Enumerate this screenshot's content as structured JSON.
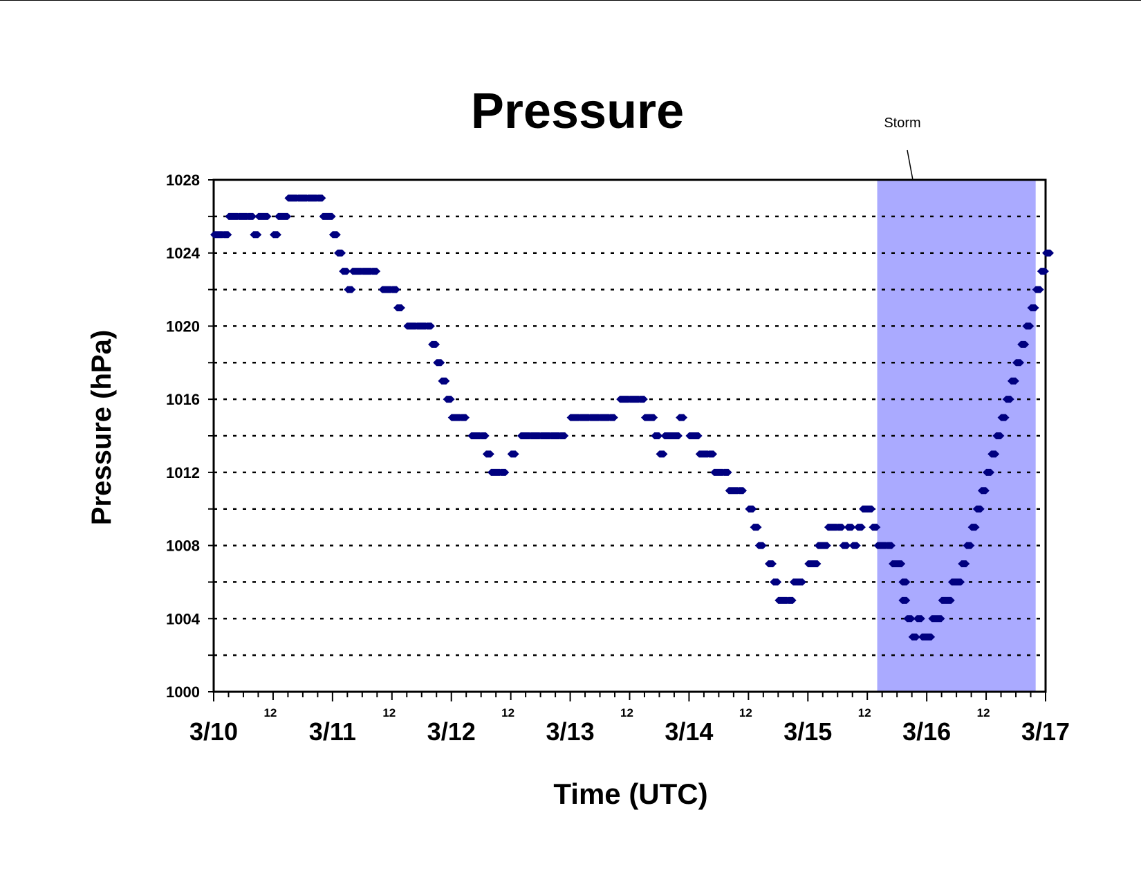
{
  "chart_data": {
    "type": "scatter",
    "title": "Pressure",
    "xlabel": "Time (UTC)",
    "ylabel": "Pressure (hPa)",
    "ylim": [
      1000,
      1028
    ],
    "yticks": [
      1000,
      1004,
      1008,
      1012,
      1016,
      1020,
      1024,
      1028
    ],
    "y_minor_ticks": [
      1002,
      1006,
      1010,
      1014,
      1018,
      1022,
      1026
    ],
    "grid": "horizontal dotted at every 2 hPa",
    "xlim": [
      "3/10 00",
      "3/17 00"
    ],
    "x_major_labels": [
      "3/10",
      "3/11",
      "3/12",
      "3/13",
      "3/14",
      "3/15",
      "3/16",
      "3/17"
    ],
    "x_minor_label": "12",
    "marker_color": "#00007f",
    "annotation": {
      "text": "Storm",
      "band_start": "3/15 14",
      "band_end": "3/16 22",
      "band_color": "#aaaaff"
    },
    "series": [
      {
        "points": [
          [
            "3/10 00",
            1025
          ],
          [
            "3/10 02",
            1025
          ],
          [
            "3/10 03",
            1026
          ],
          [
            "3/10 05",
            1026
          ],
          [
            "3/10 07",
            1026
          ],
          [
            "3/10 08",
            1025
          ],
          [
            "3/10 09",
            1026
          ],
          [
            "3/10 10",
            1026
          ],
          [
            "3/10 12",
            1025
          ],
          [
            "3/10 13",
            1026
          ],
          [
            "3/10 14",
            1026
          ],
          [
            "3/10 15",
            1027
          ],
          [
            "3/10 17",
            1027
          ],
          [
            "3/10 19",
            1027
          ],
          [
            "3/10 21",
            1027
          ],
          [
            "3/10 22",
            1026
          ],
          [
            "3/10 23",
            1026
          ],
          [
            "3/11 00",
            1025
          ],
          [
            "3/11 01",
            1024
          ],
          [
            "3/11 02",
            1023
          ],
          [
            "3/11 03",
            1022
          ],
          [
            "3/11 04",
            1023
          ],
          [
            "3/11 06",
            1023
          ],
          [
            "3/11 08",
            1023
          ],
          [
            "3/11 10",
            1022
          ],
          [
            "3/11 12",
            1022
          ],
          [
            "3/11 13",
            1021
          ],
          [
            "3/11 15",
            1020
          ],
          [
            "3/11 17",
            1020
          ],
          [
            "3/11 19",
            1020
          ],
          [
            "3/11 20",
            1019
          ],
          [
            "3/11 21",
            1018
          ],
          [
            "3/11 22",
            1017
          ],
          [
            "3/11 23",
            1016
          ],
          [
            "3/12 00",
            1015
          ],
          [
            "3/12 02",
            1015
          ],
          [
            "3/12 04",
            1014
          ],
          [
            "3/12 06",
            1014
          ],
          [
            "3/12 07",
            1013
          ],
          [
            "3/12 08",
            1012
          ],
          [
            "3/12 10",
            1012
          ],
          [
            "3/12 12",
            1013
          ],
          [
            "3/12 14",
            1014
          ],
          [
            "3/12 16",
            1014
          ],
          [
            "3/12 18",
            1014
          ],
          [
            "3/12 20",
            1014
          ],
          [
            "3/12 22",
            1014
          ],
          [
            "3/13 00",
            1015
          ],
          [
            "3/13 02",
            1015
          ],
          [
            "3/13 04",
            1015
          ],
          [
            "3/13 06",
            1015
          ],
          [
            "3/13 08",
            1015
          ],
          [
            "3/13 10",
            1016
          ],
          [
            "3/13 12",
            1016
          ],
          [
            "3/13 14",
            1016
          ],
          [
            "3/13 15",
            1015
          ],
          [
            "3/13 16",
            1015
          ],
          [
            "3/13 17",
            1014
          ],
          [
            "3/13 18",
            1013
          ],
          [
            "3/13 19",
            1014
          ],
          [
            "3/13 20",
            1014
          ],
          [
            "3/13 21",
            1014
          ],
          [
            "3/13 22",
            1015
          ],
          [
            "3/14 00",
            1014
          ],
          [
            "3/14 01",
            1014
          ],
          [
            "3/14 02",
            1013
          ],
          [
            "3/14 04",
            1013
          ],
          [
            "3/14 05",
            1012
          ],
          [
            "3/14 07",
            1012
          ],
          [
            "3/14 08",
            1011
          ],
          [
            "3/14 10",
            1011
          ],
          [
            "3/14 12",
            1010
          ],
          [
            "3/14 13",
            1009
          ],
          [
            "3/14 14",
            1008
          ],
          [
            "3/14 16",
            1007
          ],
          [
            "3/14 17",
            1006
          ],
          [
            "3/14 18",
            1005
          ],
          [
            "3/14 20",
            1005
          ],
          [
            "3/14 21",
            1006
          ],
          [
            "3/14 22",
            1006
          ],
          [
            "3/15 00",
            1007
          ],
          [
            "3/15 01",
            1007
          ],
          [
            "3/15 02",
            1008
          ],
          [
            "3/15 03",
            1008
          ],
          [
            "3/15 04",
            1009
          ],
          [
            "3/15 06",
            1009
          ],
          [
            "3/15 07",
            1008
          ],
          [
            "3/15 08",
            1009
          ],
          [
            "3/15 09",
            1008
          ],
          [
            "3/15 10",
            1009
          ],
          [
            "3/15 11",
            1010
          ],
          [
            "3/15 12",
            1010
          ],
          [
            "3/15 13",
            1009
          ],
          [
            "3/15 14",
            1008
          ],
          [
            "3/15 16",
            1008
          ],
          [
            "3/15 17",
            1007
          ],
          [
            "3/15 18",
            1007
          ],
          [
            "3/15 19",
            1006
          ],
          [
            "3/15 19",
            1005
          ],
          [
            "3/15 20",
            1004
          ],
          [
            "3/15 21",
            1003
          ],
          [
            "3/15 22",
            1004
          ],
          [
            "3/15 23",
            1003
          ],
          [
            "3/16 00",
            1003
          ],
          [
            "3/16 01",
            1004
          ],
          [
            "3/16 02",
            1004
          ],
          [
            "3/16 03",
            1005
          ],
          [
            "3/16 04",
            1005
          ],
          [
            "3/16 05",
            1006
          ],
          [
            "3/16 06",
            1006
          ],
          [
            "3/16 07",
            1007
          ],
          [
            "3/16 08",
            1008
          ],
          [
            "3/16 09",
            1009
          ],
          [
            "3/16 10",
            1010
          ],
          [
            "3/16 11",
            1011
          ],
          [
            "3/16 12",
            1012
          ],
          [
            "3/16 13",
            1013
          ],
          [
            "3/16 14",
            1014
          ],
          [
            "3/16 15",
            1015
          ],
          [
            "3/16 16",
            1016
          ],
          [
            "3/16 17",
            1017
          ],
          [
            "3/16 18",
            1018
          ],
          [
            "3/16 19",
            1019
          ],
          [
            "3/16 20",
            1020
          ],
          [
            "3/16 21",
            1021
          ],
          [
            "3/16 22",
            1022
          ],
          [
            "3/16 23",
            1023
          ],
          [
            "3/17 00",
            1024
          ]
        ]
      }
    ]
  }
}
